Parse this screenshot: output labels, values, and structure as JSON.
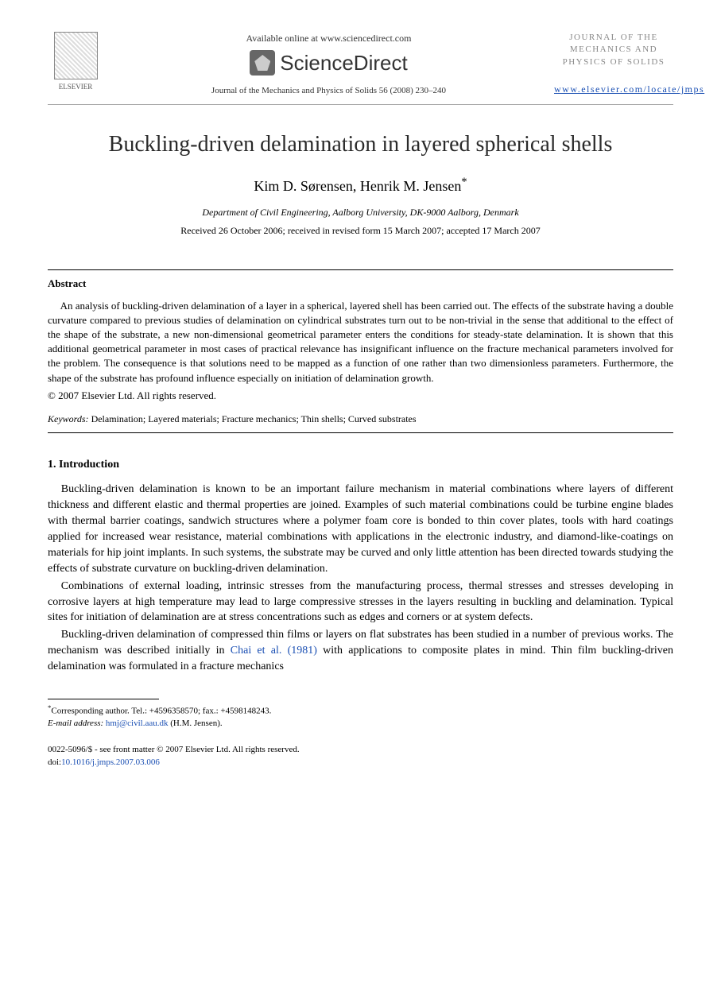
{
  "header": {
    "availableText": "Available online at www.sciencedirect.com",
    "sdBrand": "ScienceDirect",
    "elsevierLabel": "ELSEVIER",
    "journalRef": "Journal of the Mechanics and Physics of Solids 56 (2008) 230–240",
    "journalBox": {
      "line1": "JOURNAL OF THE",
      "line2": "MECHANICS AND",
      "line3": "PHYSICS OF SOLIDS"
    },
    "journalLink": "www.elsevier.com/locate/jmps"
  },
  "article": {
    "title": "Buckling-driven delamination in layered spherical shells",
    "authors": "Kim D. Sørensen, Henrik M. Jensen",
    "affiliation": "Department of Civil Engineering, Aalborg University, DK-9000 Aalborg, Denmark",
    "dates": "Received 26 October 2006; received in revised form 15 March 2007; accepted 17 March 2007"
  },
  "abstract": {
    "heading": "Abstract",
    "text": "An analysis of buckling-driven delamination of a layer in a spherical, layered shell has been carried out. The effects of the substrate having a double curvature compared to previous studies of delamination on cylindrical substrates turn out to be non-trivial in the sense that additional to the effect of the shape of the substrate, a new non-dimensional geometrical parameter enters the conditions for steady-state delamination. It is shown that this additional geometrical parameter in most cases of practical relevance has insignificant influence on the fracture mechanical parameters involved for the problem. The consequence is that solutions need to be mapped as a function of one rather than two dimensionless parameters. Furthermore, the shape of the substrate has profound influence especially on initiation of delamination growth.",
    "copyright": "© 2007 Elsevier Ltd. All rights reserved.",
    "keywordsLabel": "Keywords:",
    "keywords": " Delamination; Layered materials; Fracture mechanics; Thin shells; Curved substrates"
  },
  "intro": {
    "heading": "1.  Introduction",
    "p1": "Buckling-driven delamination is known to be an important failure mechanism in material combinations where layers of different thickness and different elastic and thermal properties are joined. Examples of such material combinations could be turbine engine blades with thermal barrier coatings, sandwich structures where a polymer foam core is bonded to thin cover plates, tools with hard coatings applied for increased wear resistance, material combinations with applications in the electronic industry, and diamond-like-coatings on materials for hip joint implants. In such systems, the substrate may be curved and only little attention has been directed towards studying the effects of substrate curvature on buckling-driven delamination.",
    "p2": "Combinations of external loading, intrinsic stresses from the manufacturing process, thermal stresses and stresses developing in corrosive layers at high temperature may lead to large compressive stresses in the layers resulting in buckling and delamination. Typical sites for initiation of delamination are at stress concentrations such as edges and corners or at system defects.",
    "p3a": "Buckling-driven delamination of compressed thin films or layers on flat substrates has been studied in a number of previous works. The mechanism was described initially in ",
    "p3cite": "Chai et al. (1981)",
    "p3b": " with applications to composite plates in mind. Thin film buckling-driven delamination was formulated in a fracture mechanics"
  },
  "footnote": {
    "corr": "Corresponding author. Tel.: +4596358570; fax.: +4598148243.",
    "emailLabel": "E-mail address:",
    "email": "hmj@civil.aau.dk",
    "emailSuffix": " (H.M. Jensen)."
  },
  "footer": {
    "line1": "0022-5096/$ - see front matter © 2007 Elsevier Ltd. All rights reserved.",
    "doiLabel": "doi:",
    "doi": "10.1016/j.jmps.2007.03.006"
  },
  "colors": {
    "link": "#1a4fb3",
    "text": "#000000",
    "muted": "#888888"
  }
}
